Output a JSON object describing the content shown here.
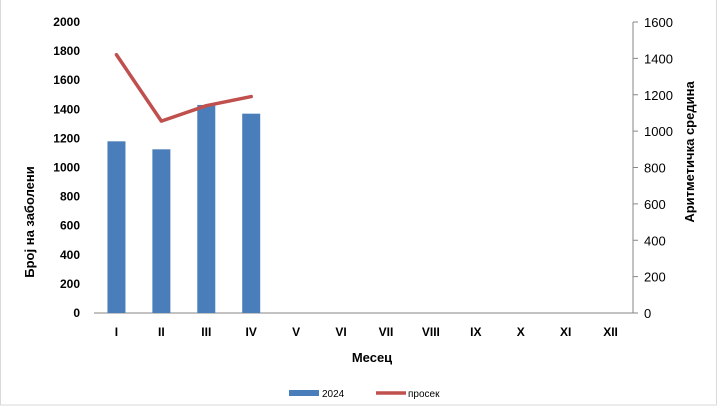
{
  "chart_data": {
    "type": "bar",
    "categories": [
      "I",
      "II",
      "III",
      "IV",
      "V",
      "VI",
      "VII",
      "VIII",
      "IX",
      "X",
      "XI",
      "XII"
    ],
    "series": [
      {
        "name": "2024",
        "type": "bar",
        "axis": "left",
        "color": "#4a7ebb",
        "values": [
          1180,
          1125,
          1430,
          1370,
          null,
          null,
          null,
          null,
          null,
          null,
          null,
          null
        ]
      },
      {
        "name": "просек",
        "type": "line",
        "axis": "right",
        "color": "#c0504d",
        "values": [
          1420,
          1055,
          1140,
          1190,
          null,
          null,
          null,
          null,
          null,
          null,
          null,
          null
        ]
      }
    ],
    "xlabel": "Месец",
    "ylabel": "Број на заболени",
    "y2label": "Аритметичка средина",
    "ylim": [
      0,
      2000
    ],
    "y2lim": [
      0,
      1600
    ],
    "yticks": [
      0,
      200,
      400,
      600,
      800,
      1000,
      1200,
      1400,
      1600,
      1800,
      2000
    ],
    "y2ticks": [
      0,
      200,
      400,
      600,
      800,
      1000,
      1200,
      1400,
      1600
    ],
    "grid": false,
    "legend": "bottom"
  }
}
